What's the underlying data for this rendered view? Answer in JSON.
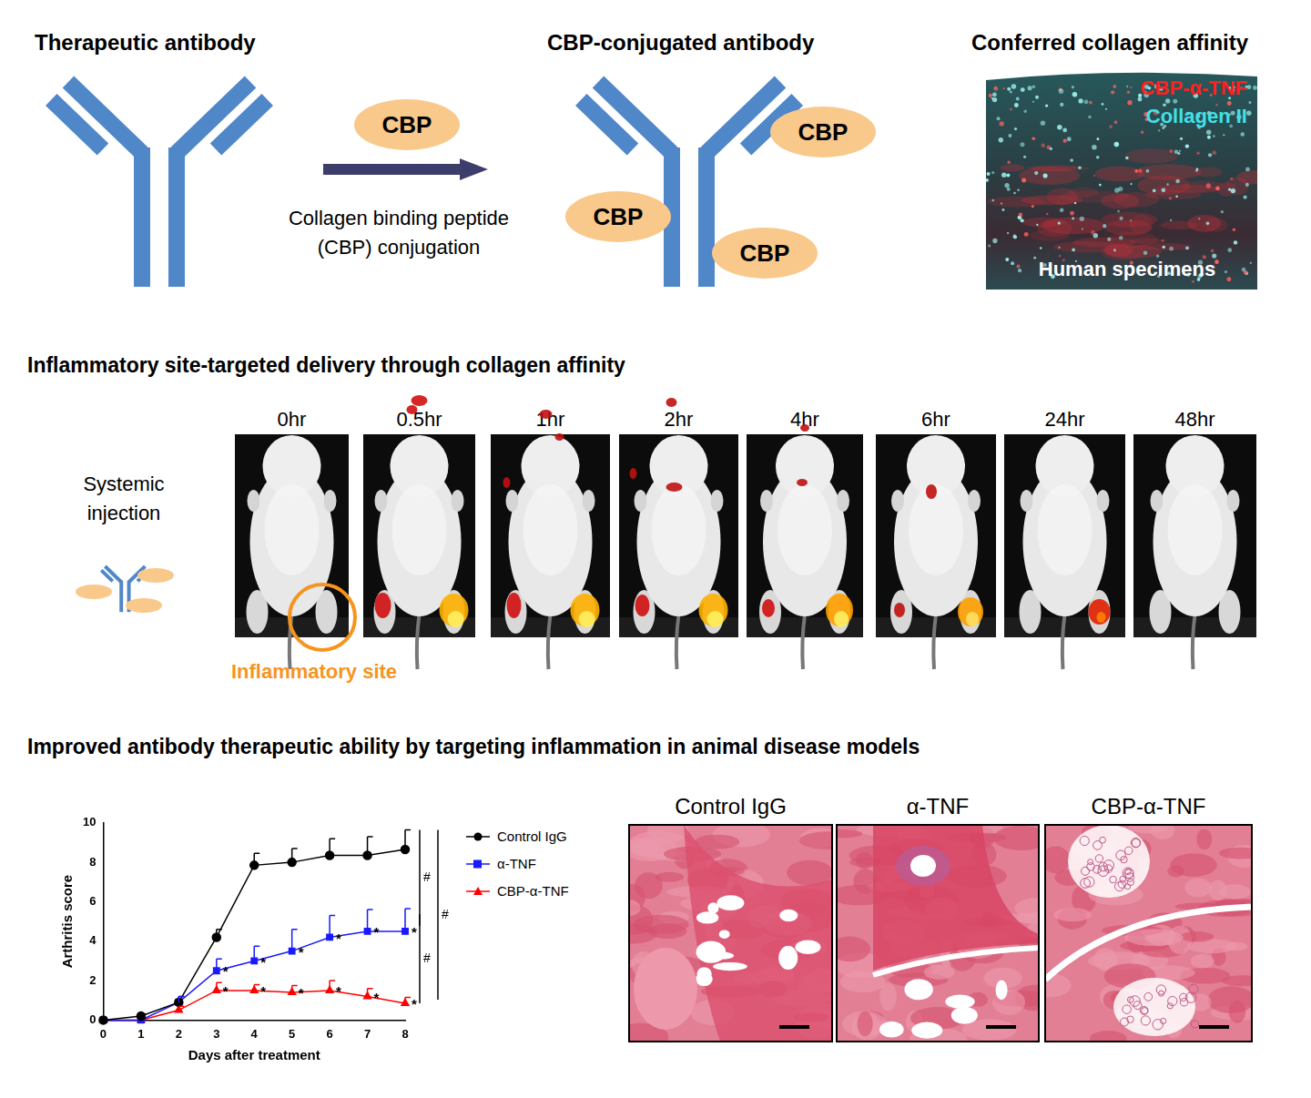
{
  "top": {
    "titles": [
      "Therapeutic antibody",
      "CBP-conjugated antibody",
      "Conferred collagen affinity"
    ],
    "cbp_label": "CBP",
    "arrow_text": [
      "Collagen binding peptide",
      "(CBP) conjugation"
    ],
    "image_labels": {
      "stain_red": "CBP-α-TNF",
      "stain_cyan": "Collagen II",
      "caption": "Human specimens"
    }
  },
  "delivery": {
    "title": "Inflammatory site-targeted delivery through collagen affinity",
    "injection_label": [
      "Systemic",
      "injection"
    ],
    "site_label": "Inflammatory site",
    "timepoints": [
      "0hr",
      "0.5hr",
      "1hr",
      "2hr",
      "4hr",
      "6hr",
      "24hr",
      "48hr"
    ]
  },
  "therapy": {
    "title": "Improved antibody therapeutic ability by targeting inflammation in animal disease models",
    "histology_panels": [
      "Control IgG",
      "α-TNF",
      "CBP-α-TNF"
    ]
  },
  "chart_data": {
    "type": "line",
    "x_label": "Days after treatment",
    "y_label": "Arthritis score",
    "x": [
      0,
      1,
      2,
      3,
      4,
      5,
      6,
      7,
      8
    ],
    "xlim": [
      0,
      8
    ],
    "xticks": [
      0,
      1,
      2,
      3,
      4,
      5,
      6,
      7,
      8
    ],
    "ylim": [
      0,
      10
    ],
    "yticks": [
      0,
      2,
      4,
      6,
      8,
      10
    ],
    "grid": false,
    "legend": "right",
    "series": [
      {
        "name": "Control IgG",
        "color": "#000000",
        "marker": "circle",
        "values": [
          0,
          0.2,
          0.9,
          4.2,
          7.85,
          8.0,
          8.35,
          8.35,
          8.65
        ],
        "errors": [
          0,
          0.1,
          0.3,
          0.4,
          0.6,
          0.7,
          0.85,
          0.95,
          1.0
        ]
      },
      {
        "name": "α-TNF",
        "color": "#1a1aff",
        "marker": "square",
        "values": [
          0,
          0,
          0.9,
          2.5,
          3.0,
          3.5,
          4.2,
          4.5,
          4.5
        ],
        "errors": [
          0,
          0,
          0.3,
          0.6,
          0.75,
          1.1,
          1.1,
          1.1,
          1.15
        ]
      },
      {
        "name": "CBP-α-TNF",
        "color": "#ff0000",
        "marker": "triangle",
        "values": [
          0,
          0,
          0.5,
          1.5,
          1.5,
          1.4,
          1.5,
          1.2,
          0.85
        ],
        "errors": [
          0,
          0,
          0.2,
          0.4,
          0.3,
          0.35,
          0.5,
          0.4,
          0.3
        ]
      }
    ],
    "annotations": [
      {
        "text": "*",
        "series": "α-TNF",
        "x": [
          3,
          4,
          5,
          6,
          7,
          8
        ]
      },
      {
        "text": "*",
        "series": "CBP-α-TNF",
        "x": [
          3,
          4,
          5,
          6,
          7,
          8
        ]
      }
    ],
    "comparisons": [
      {
        "between": [
          "Control IgG",
          "α-TNF"
        ],
        "label": "#"
      },
      {
        "between": [
          "α-TNF",
          "CBP-α-TNF"
        ],
        "label": "#"
      },
      {
        "between": [
          "Control IgG",
          "CBP-α-TNF"
        ],
        "label": "#"
      }
    ]
  }
}
